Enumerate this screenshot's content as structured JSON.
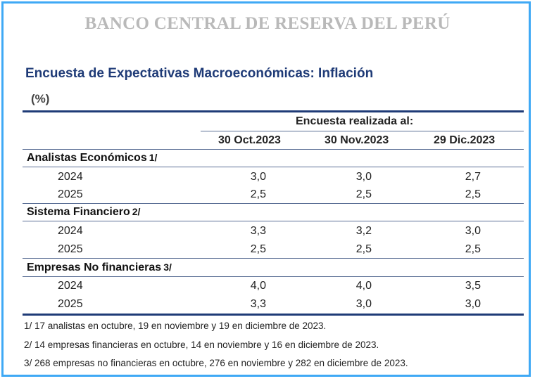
{
  "bank_name": "BANCO CENTRAL DE RESERVA DEL PERÚ",
  "title": "Encuesta de Expectativas Macroeconómicas: Inflación",
  "unit": "(%)",
  "survey_header": "Encuesta realizada al:",
  "columns": [
    "30 Oct.2023",
    "30 Nov.2023",
    "29 Dic.2023"
  ],
  "groups": [
    {
      "label": "Analistas Económicos",
      "note_ref": "1/",
      "rows": [
        {
          "year": "2024",
          "values": [
            "3,0",
            "3,0",
            "2,7"
          ]
        },
        {
          "year": "2025",
          "values": [
            "2,5",
            "2,5",
            "2,5"
          ]
        }
      ]
    },
    {
      "label": "Sistema Financiero",
      "note_ref": "2/",
      "rows": [
        {
          "year": "2024",
          "values": [
            "3,3",
            "3,2",
            "3,0"
          ]
        },
        {
          "year": "2025",
          "values": [
            "2,5",
            "2,5",
            "2,5"
          ]
        }
      ]
    },
    {
      "label": "Empresas No financieras",
      "note_ref": "3/",
      "rows": [
        {
          "year": "2024",
          "values": [
            "4,0",
            "4,0",
            "3,5"
          ]
        },
        {
          "year": "2025",
          "values": [
            "3,3",
            "3,0",
            "3,0"
          ]
        }
      ]
    }
  ],
  "notes": [
    "1/ 17 analistas en octubre, 19 en noviembre y 19 en diciembre de 2023.",
    "2/ 14 empresas financieras en octubre, 14 en noviembre y 16 en diciembre de 2023.",
    "3/ 268 empresas no financieras en octubre, 276 en noviembre y 282 en diciembre de 2023."
  ]
}
